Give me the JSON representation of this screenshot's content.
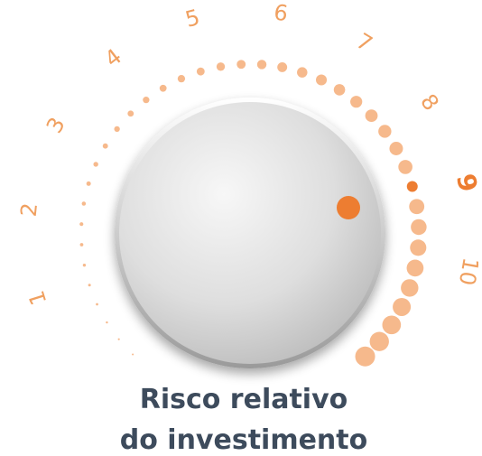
{
  "scale": {
    "labels": [
      "1",
      "2",
      "3",
      "4",
      "5",
      "6",
      "7",
      "8",
      "9",
      "10"
    ]
  },
  "caption": {
    "lines": [
      "Risco relativo",
      "do investimento"
    ]
  }
}
